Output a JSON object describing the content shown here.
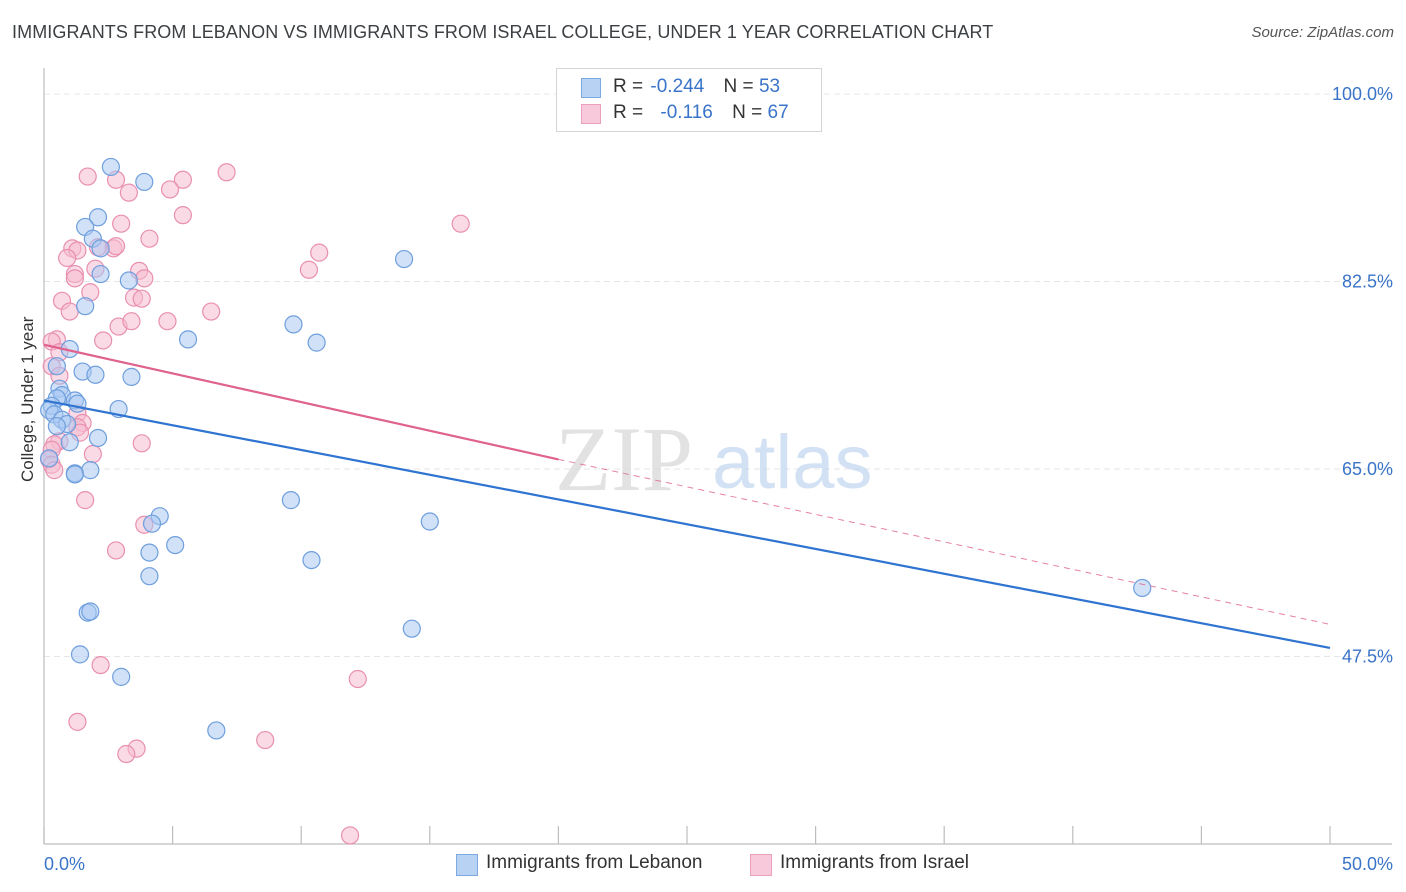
{
  "title": "IMMIGRANTS FROM LEBANON VS IMMIGRANTS FROM ISRAEL COLLEGE, UNDER 1 YEAR CORRELATION CHART",
  "source": "Source: ZipAtlas.com",
  "watermark": {
    "zip": "ZIP",
    "atlas": "atlas"
  },
  "colors": {
    "blue_fill": "#a9c8f2",
    "blue_stroke": "#6f9fdd",
    "blue_line": "#2f74d0",
    "pink_fill": "#f6bcd0",
    "pink_stroke": "#e98fb0",
    "pink_line": "#e0628e",
    "tick_label": "#3a74c8",
    "grid": "#e6e6e6"
  },
  "legend": {
    "series1": {
      "r_label": "R =",
      "r_value": "-0.244",
      "n_label": "N =",
      "n_value": "53"
    },
    "series2": {
      "r_label": "R =",
      "r_value": "-0.116",
      "n_label": "N =",
      "n_value": "67"
    }
  },
  "chart_data": {
    "type": "scatter",
    "title": "IMMIGRANTS FROM LEBANON VS IMMIGRANTS FROM ISRAEL COLLEGE, UNDER 1 YEAR CORRELATION CHART",
    "xlabel": "",
    "ylabel": "College, Under 1 year",
    "xlim": [
      0,
      50
    ],
    "ylim": [
      30,
      101.5
    ],
    "x_tick_labels": [
      {
        "value": 0,
        "label": "0.0%"
      },
      {
        "value": 50,
        "label": "50.0%"
      }
    ],
    "y_tick_labels": [
      {
        "value": 100,
        "label": "100.0%"
      },
      {
        "value": 82.5,
        "label": "82.5%"
      },
      {
        "value": 65,
        "label": "65.0%"
      },
      {
        "value": 47.5,
        "label": "47.5%"
      }
    ],
    "grid": true,
    "series": [
      {
        "name": "Immigrants from Lebanon",
        "color": "#a9c8f2",
        "trend": {
          "x": [
            0,
            50
          ],
          "y": [
            71.4,
            48.3
          ],
          "style": "solid"
        },
        "points": [
          [
            2.6,
            93.2
          ],
          [
            3.9,
            91.8
          ],
          [
            2.1,
            88.5
          ],
          [
            1.6,
            87.6
          ],
          [
            1.9,
            86.5
          ],
          [
            2.2,
            85.6
          ],
          [
            14.0,
            84.6
          ],
          [
            2.2,
            83.2
          ],
          [
            3.3,
            82.6
          ],
          [
            1.6,
            80.2
          ],
          [
            9.7,
            78.5
          ],
          [
            5.6,
            77.1
          ],
          [
            10.6,
            76.8
          ],
          [
            1.0,
            76.2
          ],
          [
            0.5,
            74.6
          ],
          [
            1.5,
            74.1
          ],
          [
            2.0,
            73.8
          ],
          [
            3.4,
            73.6
          ],
          [
            0.6,
            72.5
          ],
          [
            0.7,
            71.9
          ],
          [
            0.5,
            71.6
          ],
          [
            1.2,
            71.4
          ],
          [
            1.3,
            71.1
          ],
          [
            0.3,
            70.9
          ],
          [
            0.2,
            70.5
          ],
          [
            2.9,
            70.6
          ],
          [
            0.4,
            70.1
          ],
          [
            0.7,
            69.6
          ],
          [
            0.9,
            69.2
          ],
          [
            0.5,
            69.0
          ],
          [
            2.1,
            67.9
          ],
          [
            1.0,
            67.5
          ],
          [
            0.2,
            66.0
          ],
          [
            1.2,
            64.6
          ],
          [
            1.8,
            64.9
          ],
          [
            1.2,
            64.5
          ],
          [
            9.6,
            62.1
          ],
          [
            4.5,
            60.6
          ],
          [
            4.2,
            59.9
          ],
          [
            15.0,
            60.1
          ],
          [
            5.1,
            57.9
          ],
          [
            4.1,
            57.2
          ],
          [
            10.4,
            56.5
          ],
          [
            4.1,
            55.0
          ],
          [
            42.7,
            53.9
          ],
          [
            1.7,
            51.6
          ],
          [
            1.8,
            51.7
          ],
          [
            14.3,
            50.1
          ],
          [
            1.4,
            47.7
          ],
          [
            3.0,
            45.6
          ],
          [
            6.7,
            40.6
          ]
        ]
      },
      {
        "name": "Immigrants from Israel",
        "color": "#f6bcd0",
        "trend": {
          "x": [
            0,
            20
          ],
          "y": [
            76.6,
            65.9
          ],
          "style": "solid",
          "extended": {
            "x": [
              20,
              50
            ],
            "y": [
              65.9,
              50.5
            ],
            "style": "dashed"
          }
        },
        "points": [
          [
            7.1,
            92.7
          ],
          [
            1.7,
            92.3
          ],
          [
            2.8,
            92.0
          ],
          [
            5.4,
            92.0
          ],
          [
            4.9,
            91.1
          ],
          [
            3.3,
            90.8
          ],
          [
            5.4,
            88.7
          ],
          [
            16.2,
            87.9
          ],
          [
            3.0,
            87.9
          ],
          [
            4.1,
            86.5
          ],
          [
            2.7,
            85.6
          ],
          [
            2.8,
            85.8
          ],
          [
            2.1,
            85.7
          ],
          [
            1.1,
            85.6
          ],
          [
            1.3,
            85.4
          ],
          [
            10.7,
            85.2
          ],
          [
            0.9,
            84.7
          ],
          [
            3.7,
            83.5
          ],
          [
            10.3,
            83.6
          ],
          [
            2.0,
            83.7
          ],
          [
            1.2,
            83.2
          ],
          [
            1.2,
            82.8
          ],
          [
            3.9,
            82.8
          ],
          [
            1.8,
            81.5
          ],
          [
            3.5,
            81.0
          ],
          [
            3.8,
            80.9
          ],
          [
            0.7,
            80.7
          ],
          [
            1.0,
            79.7
          ],
          [
            6.5,
            79.7
          ],
          [
            2.9,
            78.3
          ],
          [
            3.4,
            78.8
          ],
          [
            4.8,
            78.8
          ],
          [
            2.3,
            77.0
          ],
          [
            0.5,
            77.1
          ],
          [
            0.3,
            76.9
          ],
          [
            0.6,
            75.9
          ],
          [
            0.3,
            74.6
          ],
          [
            0.6,
            73.7
          ],
          [
            1.3,
            70.2
          ],
          [
            1.5,
            69.3
          ],
          [
            1.3,
            68.9
          ],
          [
            1.4,
            68.4
          ],
          [
            0.6,
            67.6
          ],
          [
            3.8,
            67.4
          ],
          [
            0.4,
            67.3
          ],
          [
            0.3,
            66.8
          ],
          [
            1.9,
            66.4
          ],
          [
            0.2,
            65.9
          ],
          [
            0.3,
            65.4
          ],
          [
            0.4,
            64.9
          ],
          [
            1.6,
            62.1
          ],
          [
            3.9,
            59.8
          ],
          [
            2.8,
            57.4
          ],
          [
            2.2,
            46.7
          ],
          [
            12.2,
            45.4
          ],
          [
            1.3,
            41.4
          ],
          [
            8.6,
            39.7
          ],
          [
            3.6,
            38.9
          ],
          [
            3.2,
            38.4
          ],
          [
            11.9,
            30.8
          ]
        ]
      }
    ]
  }
}
